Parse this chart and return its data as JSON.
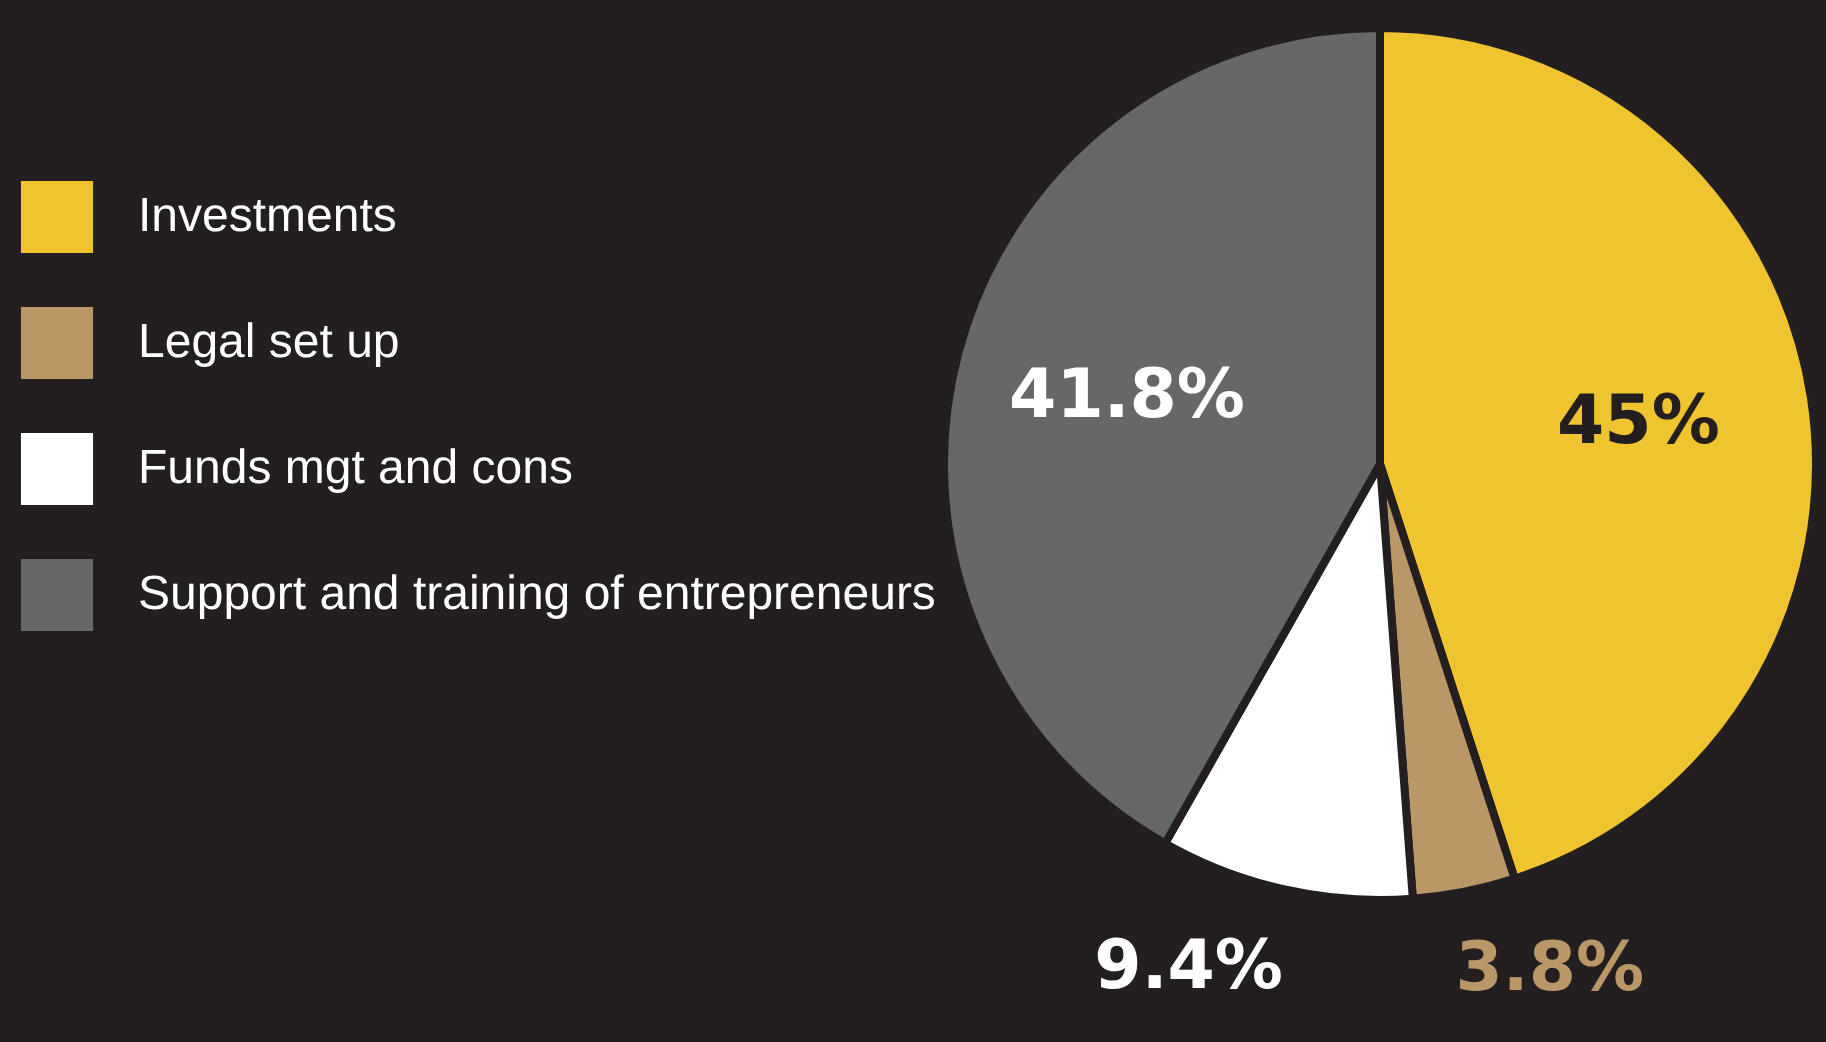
{
  "chart_data": {
    "type": "pie",
    "categories": [
      "Investments",
      "Legal set up",
      "Funds mgt and cons",
      "Support and training of entrepreneurs"
    ],
    "values": [
      45,
      3.8,
      9.4,
      41.8
    ],
    "colors": [
      "#efc42f",
      "#b99766",
      "#ffffff",
      "#67676a"
    ],
    "value_labels": [
      "45%",
      "3.8%",
      "9.4%",
      "41.8%"
    ],
    "legend": "left"
  }
}
